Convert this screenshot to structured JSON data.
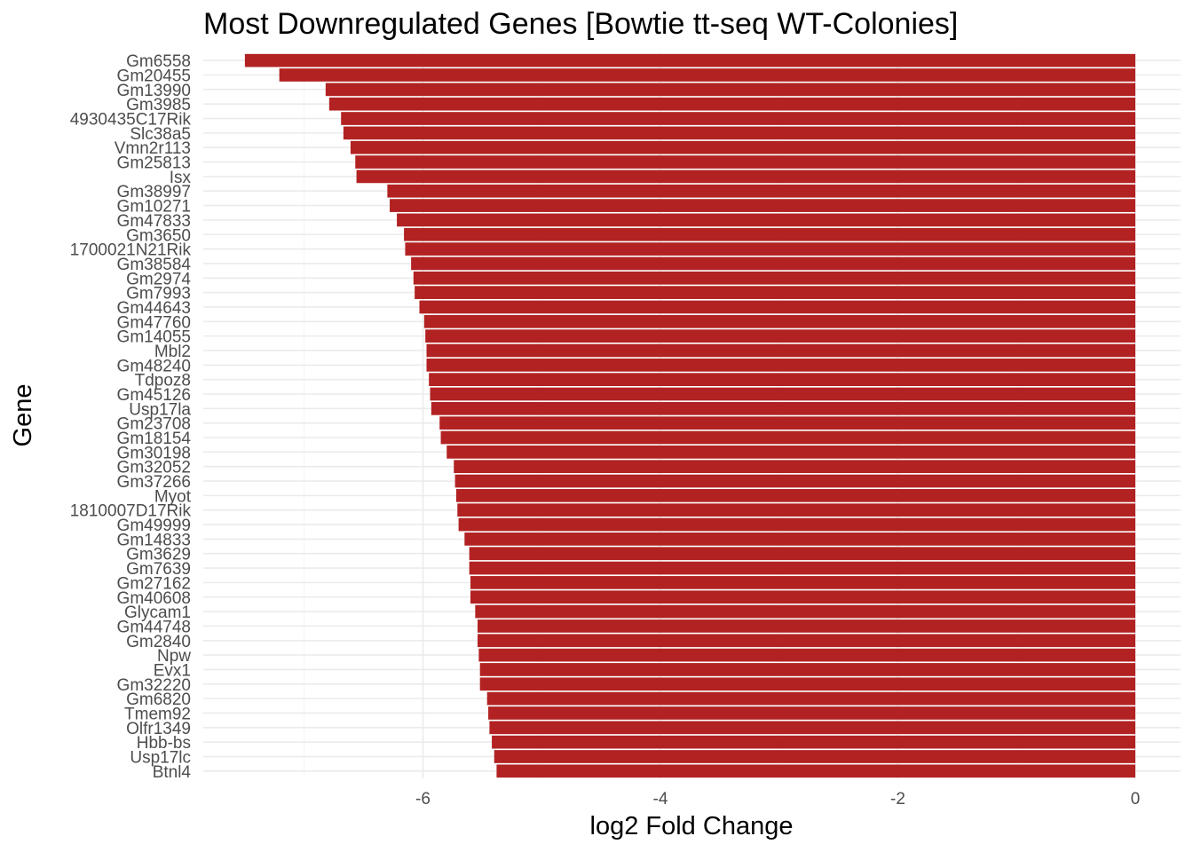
{
  "chart_data": {
    "type": "bar",
    "orientation": "horizontal",
    "title": "Most Downregulated Genes [Bowtie tt-seq WT-Colonies]",
    "xlabel": "log2 Fold Change",
    "ylabel": "Gene",
    "xlim": [
      -7.83,
      0.37
    ],
    "xticks": [
      -6,
      -4,
      -2,
      0
    ],
    "xtick_labels": [
      "-6",
      "-4",
      "-2",
      "0"
    ],
    "bar_color": "#B22222",
    "grid": true,
    "legend": "none",
    "categories": [
      "Gm6558",
      "Gm20455",
      "Gm13990",
      "Gm3985",
      "4930435C17Rik",
      "Slc38a5",
      "Vmn2r113",
      "Gm25813",
      "Isx",
      "Gm38997",
      "Gm10271",
      "Gm47833",
      "Gm3650",
      "1700021N21Rik",
      "Gm38584",
      "Gm2974",
      "Gm7993",
      "Gm44643",
      "Gm47760",
      "Gm14055",
      "Mbl2",
      "Gm48240",
      "Tdpoz8",
      "Gm45126",
      "Usp17la",
      "Gm23708",
      "Gm18154",
      "Gm30198",
      "Gm32052",
      "Gm37266",
      "Myot",
      "1810007D17Rik",
      "Gm49999",
      "Gm14833",
      "Gm3629",
      "Gm7639",
      "Gm27162",
      "Gm40608",
      "Glycam1",
      "Gm44748",
      "Gm2840",
      "Npw",
      "Evx1",
      "Gm32220",
      "Gm6820",
      "Tmem92",
      "Olfr1349",
      "Hbb-bs",
      "Usp17lc",
      "Btnl4"
    ],
    "values": [
      -7.5,
      -7.21,
      -6.82,
      -6.79,
      -6.69,
      -6.67,
      -6.61,
      -6.57,
      -6.56,
      -6.3,
      -6.28,
      -6.22,
      -6.16,
      -6.15,
      -6.1,
      -6.08,
      -6.07,
      -6.03,
      -5.99,
      -5.98,
      -5.97,
      -5.97,
      -5.95,
      -5.94,
      -5.93,
      -5.86,
      -5.85,
      -5.8,
      -5.74,
      -5.73,
      -5.72,
      -5.71,
      -5.7,
      -5.65,
      -5.61,
      -5.61,
      -5.6,
      -5.6,
      -5.56,
      -5.54,
      -5.54,
      -5.53,
      -5.52,
      -5.52,
      -5.46,
      -5.45,
      -5.44,
      -5.42,
      -5.4,
      -5.38
    ]
  }
}
